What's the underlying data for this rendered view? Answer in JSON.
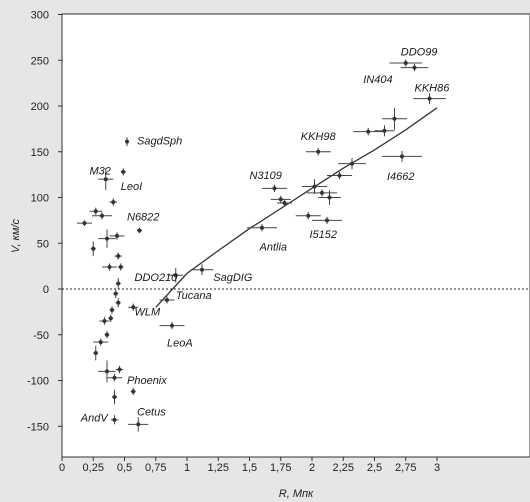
{
  "chart_data": {
    "type": "scatter",
    "xlabel": "R, Мпк",
    "ylabel": "V, км/с",
    "xlim": [
      0,
      3
    ],
    "ylim": [
      -170,
      300
    ],
    "xticks": [
      "0",
      "0,25",
      "0,5",
      "0,75",
      "1",
      "1,25",
      "1,5",
      "1,75",
      "2",
      "2,25",
      "2,5",
      "2,75",
      "3"
    ],
    "yticks": [
      "-150",
      "-100",
      "-50",
      "0",
      "50",
      "100",
      "150",
      "200",
      "250",
      "300"
    ],
    "grid": false,
    "zero_line": 0,
    "points": [
      {
        "x": 0.52,
        "y": 161,
        "xerr": 0,
        "yerr": 5
      },
      {
        "x": 0.35,
        "y": 120,
        "xerr": 0.06,
        "yerr": 12
      },
      {
        "x": 0.49,
        "y": 128,
        "xerr": 0.02,
        "yerr": 4
      },
      {
        "x": 0.27,
        "y": 85,
        "xerr": 0.05,
        "yerr": 4
      },
      {
        "x": 0.41,
        "y": 95,
        "xerr": 0.03,
        "yerr": 4
      },
      {
        "x": 0.62,
        "y": 64,
        "xerr": 0.02,
        "yerr": 3
      },
      {
        "x": 0.18,
        "y": 72,
        "xerr": 0.06,
        "yerr": 3
      },
      {
        "x": 0.32,
        "y": 80,
        "xerr": 0.08,
        "yerr": 4
      },
      {
        "x": 0.36,
        "y": 55,
        "xerr": 0.07,
        "yerr": 10
      },
      {
        "x": 0.44,
        "y": 58,
        "xerr": 0.06,
        "yerr": 4
      },
      {
        "x": 0.25,
        "y": 44,
        "xerr": 0.02,
        "yerr": 8
      },
      {
        "x": 0.45,
        "y": 36,
        "xerr": 0.03,
        "yerr": 4
      },
      {
        "x": 0.38,
        "y": 24,
        "xerr": 0.06,
        "yerr": 4
      },
      {
        "x": 0.47,
        "y": 24,
        "xerr": 0.02,
        "yerr": 4
      },
      {
        "x": 0.45,
        "y": 6,
        "xerr": 0.02,
        "yerr": 6
      },
      {
        "x": 0.43,
        "y": -5,
        "xerr": 0.02,
        "yerr": 5
      },
      {
        "x": 0.45,
        "y": -15,
        "xerr": 0.02,
        "yerr": 5
      },
      {
        "x": 0.4,
        "y": -23,
        "xerr": 0.02,
        "yerr": 4
      },
      {
        "x": 0.39,
        "y": -32,
        "xerr": 0.02,
        "yerr": 4
      },
      {
        "x": 0.34,
        "y": -35,
        "xerr": 0.04,
        "yerr": 4
      },
      {
        "x": 0.31,
        "y": -58,
        "xerr": 0.06,
        "yerr": 4
      },
      {
        "x": 0.36,
        "y": -50,
        "xerr": 0.02,
        "yerr": 4
      },
      {
        "x": 0.27,
        "y": -70,
        "xerr": 0.02,
        "yerr": 8
      },
      {
        "x": 0.36,
        "y": -90,
        "xerr": 0.07,
        "yerr": 12
      },
      {
        "x": 0.42,
        "y": -97,
        "xerr": 0.06,
        "yerr": 4
      },
      {
        "x": 0.46,
        "y": -88,
        "xerr": 0.03,
        "yerr": 4
      },
      {
        "x": 0.42,
        "y": -118,
        "xerr": 0.02,
        "yerr": 8
      },
      {
        "x": 0.42,
        "y": -143,
        "xerr": 0.03,
        "yerr": 5
      },
      {
        "x": 0.57,
        "y": -112,
        "xerr": 0.02,
        "yerr": 4
      },
      {
        "x": 0.61,
        "y": -148,
        "xerr": 0.08,
        "yerr": 8
      },
      {
        "x": 0.57,
        "y": -20,
        "xerr": 0.04,
        "yerr": 4
      },
      {
        "x": 0.91,
        "y": 15,
        "xerr": 0.06,
        "yerr": 8
      },
      {
        "x": 0.84,
        "y": -12,
        "xerr": 0.06,
        "yerr": 4
      },
      {
        "x": 0.88,
        "y": -40,
        "xerr": 0.1,
        "yerr": 4
      },
      {
        "x": 1.12,
        "y": 21,
        "xerr": 0.09,
        "yerr": 6
      },
      {
        "x": 1.6,
        "y": 67,
        "xerr": 0.12,
        "yerr": 4
      },
      {
        "x": 1.7,
        "y": 110,
        "xerr": 0.1,
        "yerr": 4
      },
      {
        "x": 1.75,
        "y": 98,
        "xerr": 0.08,
        "yerr": 4
      },
      {
        "x": 1.78,
        "y": 94,
        "xerr": 0.06,
        "yerr": 4
      },
      {
        "x": 2.05,
        "y": 150,
        "xerr": 0.1,
        "yerr": 4
      },
      {
        "x": 1.97,
        "y": 80,
        "xerr": 0.1,
        "yerr": 4
      },
      {
        "x": 2.02,
        "y": 112,
        "xerr": 0.1,
        "yerr": 8
      },
      {
        "x": 2.08,
        "y": 105,
        "xerr": 0.12,
        "yerr": 4
      },
      {
        "x": 2.14,
        "y": 100,
        "xerr": 0.09,
        "yerr": 8
      },
      {
        "x": 2.12,
        "y": 75,
        "xerr": 0.12,
        "yerr": 4
      },
      {
        "x": 2.22,
        "y": 124,
        "xerr": 0.1,
        "yerr": 4
      },
      {
        "x": 2.32,
        "y": 137,
        "xerr": 0.11,
        "yerr": 6
      },
      {
        "x": 2.45,
        "y": 172,
        "xerr": 0.12,
        "yerr": 4
      },
      {
        "x": 2.58,
        "y": 173,
        "xerr": 0.08,
        "yerr": 6
      },
      {
        "x": 2.66,
        "y": 186,
        "xerr": 0.1,
        "yerr": 12
      },
      {
        "x": 2.72,
        "y": 145,
        "xerr": 0.16,
        "yerr": 6
      },
      {
        "x": 2.75,
        "y": 247,
        "xerr": 0.13,
        "yerr": 4
      },
      {
        "x": 2.82,
        "y": 242,
        "xerr": 0.11,
        "yerr": 4
      },
      {
        "x": 2.94,
        "y": 208,
        "xerr": 0.13,
        "yerr": 6
      }
    ],
    "curve": {
      "x": [
        0.75,
        1.0,
        1.25,
        1.5,
        1.75,
        2.0,
        2.25,
        2.5,
        2.75,
        3.0
      ],
      "y": [
        -20,
        17,
        42,
        66,
        88,
        110,
        132,
        152,
        174,
        198
      ]
    },
    "annotations": [
      {
        "text": "SagdSph",
        "x": 0.6,
        "y": 158
      },
      {
        "text": "M32",
        "x": 0.22,
        "y": 125
      },
      {
        "text": "LeoI",
        "x": 0.47,
        "y": 108
      },
      {
        "text": "N6822",
        "x": 0.52,
        "y": 75
      },
      {
        "text": "DDO210",
        "x": 0.58,
        "y": 9
      },
      {
        "text": "WLM",
        "x": 0.58,
        "y": -29
      },
      {
        "text": "Tucana",
        "x": 0.91,
        "y": -11
      },
      {
        "text": "SagDIG",
        "x": 1.21,
        "y": 9
      },
      {
        "text": "LeoA",
        "x": 0.84,
        "y": -63
      },
      {
        "text": "Phoenix",
        "x": 0.52,
        "y": -104
      },
      {
        "text": "AndV",
        "x": 0.15,
        "y": -145
      },
      {
        "text": "Cetus",
        "x": 0.6,
        "y": -138
      },
      {
        "text": "Antlia",
        "x": 1.58,
        "y": 42
      },
      {
        "text": "N3109",
        "x": 1.5,
        "y": 120
      },
      {
        "text": "KKH98",
        "x": 1.91,
        "y": 163
      },
      {
        "text": "I5152",
        "x": 1.98,
        "y": 56
      },
      {
        "text": "IN404",
        "x": 2.41,
        "y": 225
      },
      {
        "text": "KKH86",
        "x": 2.82,
        "y": 216
      },
      {
        "text": "I4662",
        "x": 2.6,
        "y": 119
      },
      {
        "text": "DDO99",
        "x": 2.71,
        "y": 255
      }
    ]
  }
}
